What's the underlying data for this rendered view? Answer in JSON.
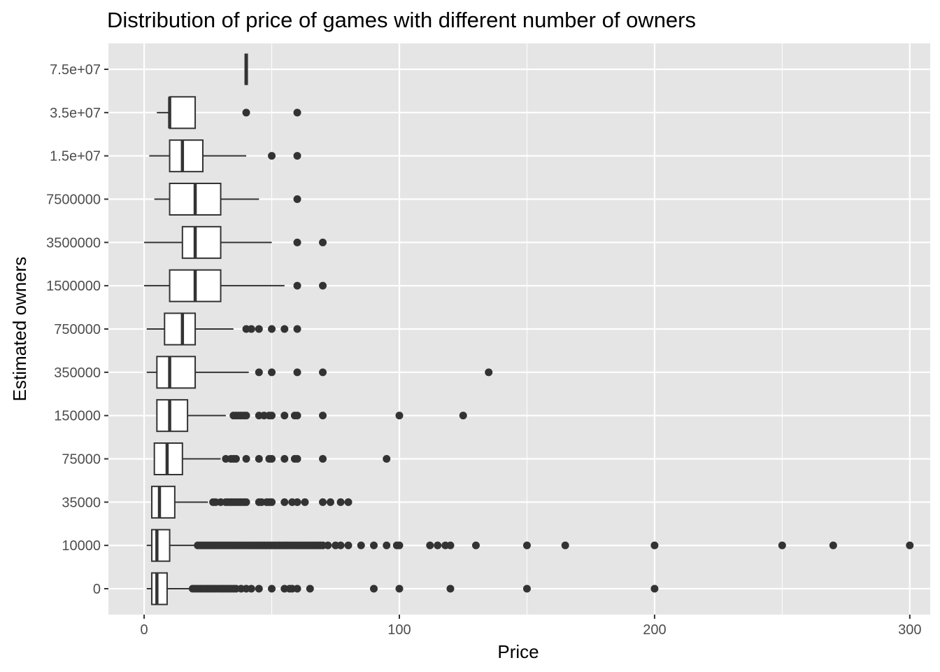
{
  "chart_data": {
    "type": "boxplot",
    "orientation": "horizontal",
    "title": "Distribution of price of games with different number of owners",
    "xlabel": "Price",
    "ylabel": "Estimated owners",
    "xlim": [
      -14,
      308
    ],
    "xticks": [
      0,
      100,
      200,
      300
    ],
    "grid": true,
    "legend": "none",
    "colors": {
      "panel": "#e5e5e5",
      "grid": "#ffffff",
      "box_fill": "#ffffff",
      "box_stroke": "#333333",
      "outlier": "#333333",
      "tick_text": "#4d4d4d"
    },
    "categories": [
      "0",
      "10000",
      "35000",
      "75000",
      "150000",
      "350000",
      "750000",
      "1500000",
      "3500000",
      "7500000",
      "1.5e+07",
      "3.5e+07",
      "7.5e+07"
    ],
    "boxes": [
      {
        "category": "0",
        "whisker_low": 1,
        "q1": 3,
        "median": 5,
        "q3": 9,
        "whisker_high": 18,
        "outliers": [
          19,
          20,
          21,
          22,
          23,
          24,
          25,
          26,
          27,
          28,
          29,
          30,
          31,
          32,
          33,
          34,
          35,
          36,
          38,
          40,
          42,
          45,
          50,
          55,
          57,
          58,
          60,
          65,
          90,
          100,
          120,
          150,
          200
        ]
      },
      {
        "category": "10000",
        "whisker_low": 1,
        "q1": 3,
        "median": 5,
        "q3": 10,
        "whisker_high": 20,
        "outliers": [
          21,
          22,
          23,
          24,
          25,
          26,
          27,
          28,
          29,
          30,
          31,
          32,
          33,
          34,
          35,
          36,
          37,
          38,
          39,
          40,
          41,
          42,
          43,
          44,
          45,
          46,
          47,
          48,
          49,
          50,
          51,
          52,
          53,
          54,
          55,
          56,
          57,
          58,
          59,
          60,
          61,
          62,
          63,
          64,
          65,
          66,
          67,
          68,
          69,
          70,
          72,
          75,
          77,
          80,
          85,
          90,
          95,
          99,
          100,
          112,
          115,
          118,
          120,
          130,
          150,
          165,
          200,
          250,
          270,
          300
        ]
      },
      {
        "category": "35000",
        "whisker_low": 3,
        "q1": 3,
        "median": 6,
        "q3": 12,
        "whisker_high": 25,
        "outliers": [
          27,
          28,
          30,
          32,
          33,
          34,
          35,
          36,
          37,
          38,
          39,
          40,
          45,
          46,
          48,
          49,
          50,
          55,
          58,
          60,
          63,
          70,
          73,
          77,
          80
        ]
      },
      {
        "category": "75000",
        "whisker_low": 4,
        "q1": 4,
        "median": 9,
        "q3": 15,
        "whisker_high": 30,
        "outliers": [
          32,
          34,
          35,
          36,
          40,
          45,
          49,
          50,
          55,
          59,
          60,
          70,
          95
        ]
      },
      {
        "category": "150000",
        "whisker_low": 5,
        "q1": 5,
        "median": 10,
        "q3": 17,
        "whisker_high": 32,
        "outliers": [
          35,
          36,
          37,
          38,
          39,
          40,
          45,
          47,
          49,
          50,
          55,
          59,
          60,
          70,
          100,
          125
        ]
      },
      {
        "category": "350000",
        "whisker_low": 1,
        "q1": 5,
        "median": 10,
        "q3": 20,
        "whisker_high": 41,
        "outliers": [
          45,
          50,
          60,
          70,
          135
        ]
      },
      {
        "category": "750000",
        "whisker_low": 1,
        "q1": 8,
        "median": 15,
        "q3": 20,
        "whisker_high": 35,
        "outliers": [
          40,
          42,
          45,
          50,
          55,
          60
        ]
      },
      {
        "category": "1500000",
        "whisker_low": 0,
        "q1": 10,
        "median": 20,
        "q3": 30,
        "whisker_high": 55,
        "outliers": [
          60,
          70
        ]
      },
      {
        "category": "3500000",
        "whisker_low": 0,
        "q1": 15,
        "median": 20,
        "q3": 30,
        "whisker_high": 50,
        "outliers": [
          60,
          70
        ]
      },
      {
        "category": "7500000",
        "whisker_low": 4,
        "q1": 10,
        "median": 20,
        "q3": 30,
        "whisker_high": 45,
        "outliers": [
          60
        ]
      },
      {
        "category": "1.5e+07",
        "whisker_low": 2,
        "q1": 10,
        "median": 15,
        "q3": 23,
        "whisker_high": 40,
        "outliers": [
          50,
          60
        ]
      },
      {
        "category": "3.5e+07",
        "whisker_low": 5,
        "q1": 10,
        "median": 10,
        "q3": 20,
        "whisker_high": 20,
        "outliers": [
          40,
          60
        ]
      },
      {
        "category": "7.5e+07",
        "whisker_low": 40,
        "q1": 40,
        "median": 40,
        "q3": 40,
        "whisker_high": 40,
        "outliers": []
      }
    ]
  }
}
